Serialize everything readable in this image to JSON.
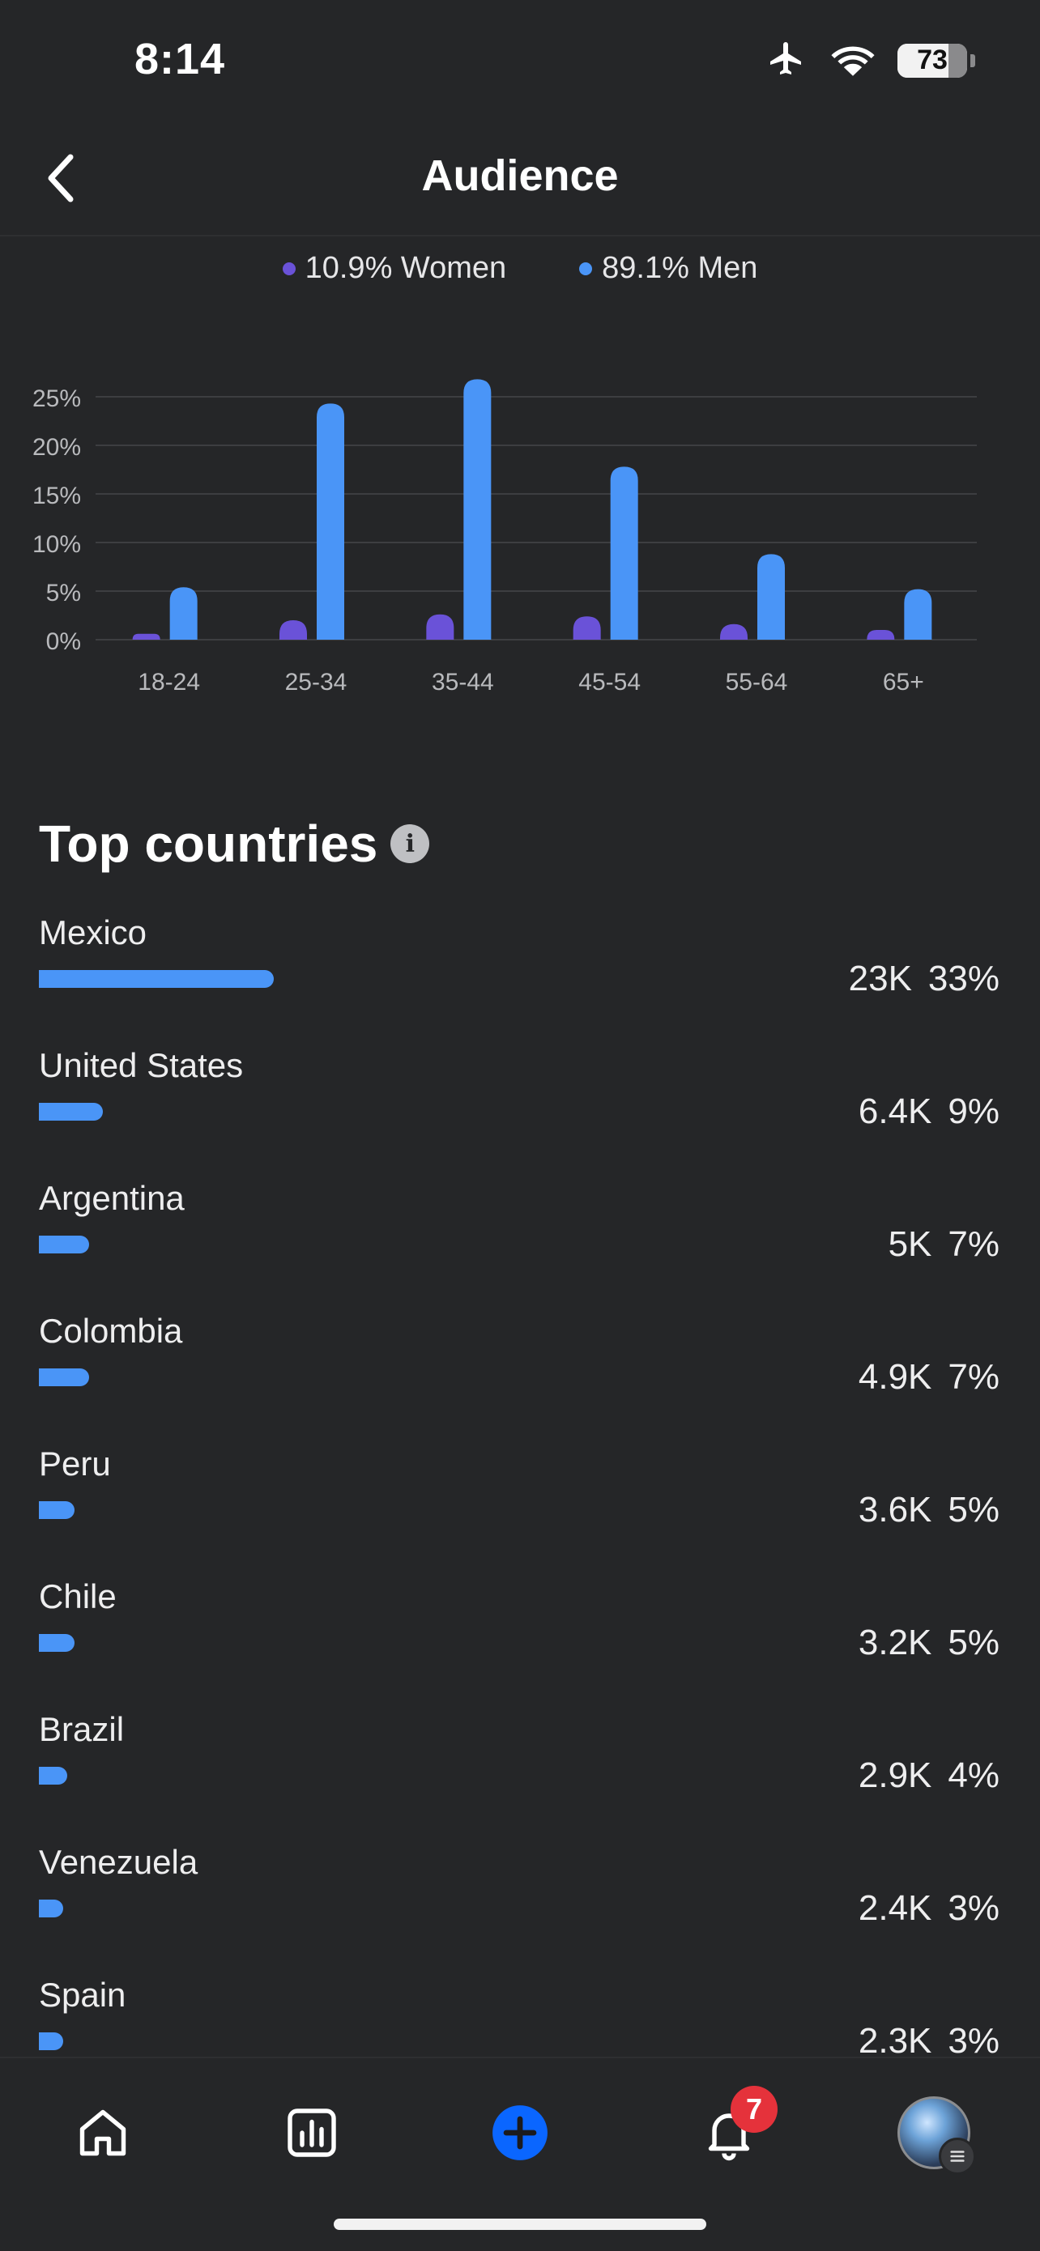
{
  "status_bar": {
    "time": "8:14",
    "battery": "73",
    "battery_level": 0.73
  },
  "nav": {
    "title": "Audience"
  },
  "legend": [
    {
      "label": "10.9% Women",
      "color": "#6a52d8"
    },
    {
      "label": "89.1% Men",
      "color": "#4a95f7"
    }
  ],
  "chart_data": {
    "type": "bar",
    "categories": [
      "18-24",
      "25-34",
      "35-44",
      "45-54",
      "55-64",
      "65+"
    ],
    "series": [
      {
        "name": "Women",
        "color": "#6a52d8",
        "values": [
          0.6,
          2.0,
          2.6,
          2.4,
          1.6,
          1.0
        ]
      },
      {
        "name": "Men",
        "color": "#4a95f7",
        "values": [
          5.4,
          24.3,
          26.8,
          17.8,
          8.8,
          5.2
        ]
      }
    ],
    "yticks": [
      "0%",
      "5%",
      "10%",
      "15%",
      "20%",
      "25%"
    ],
    "ylim": [
      0,
      25
    ],
    "grid": true
  },
  "top_countries": {
    "title": "Top countries",
    "items": [
      {
        "name": "Mexico",
        "count": "23K",
        "percent": "33%",
        "share": 33
      },
      {
        "name": "United States",
        "count": "6.4K",
        "percent": "9%",
        "share": 9
      },
      {
        "name": "Argentina",
        "count": "5K",
        "percent": "7%",
        "share": 7
      },
      {
        "name": "Colombia",
        "count": "4.9K",
        "percent": "7%",
        "share": 7
      },
      {
        "name": "Peru",
        "count": "3.6K",
        "percent": "5%",
        "share": 5
      },
      {
        "name": "Chile",
        "count": "3.2K",
        "percent": "5%",
        "share": 5
      },
      {
        "name": "Brazil",
        "count": "2.9K",
        "percent": "4%",
        "share": 4
      },
      {
        "name": "Venezuela",
        "count": "2.4K",
        "percent": "3%",
        "share": 3
      },
      {
        "name": "Spain",
        "count": "2.3K",
        "percent": "3%",
        "share": 3
      }
    ]
  },
  "tab_bar": {
    "notification_count": "7",
    "tabs": [
      "home-icon",
      "insights-icon",
      "create-icon",
      "notifications-icon",
      "profile-avatar"
    ]
  }
}
